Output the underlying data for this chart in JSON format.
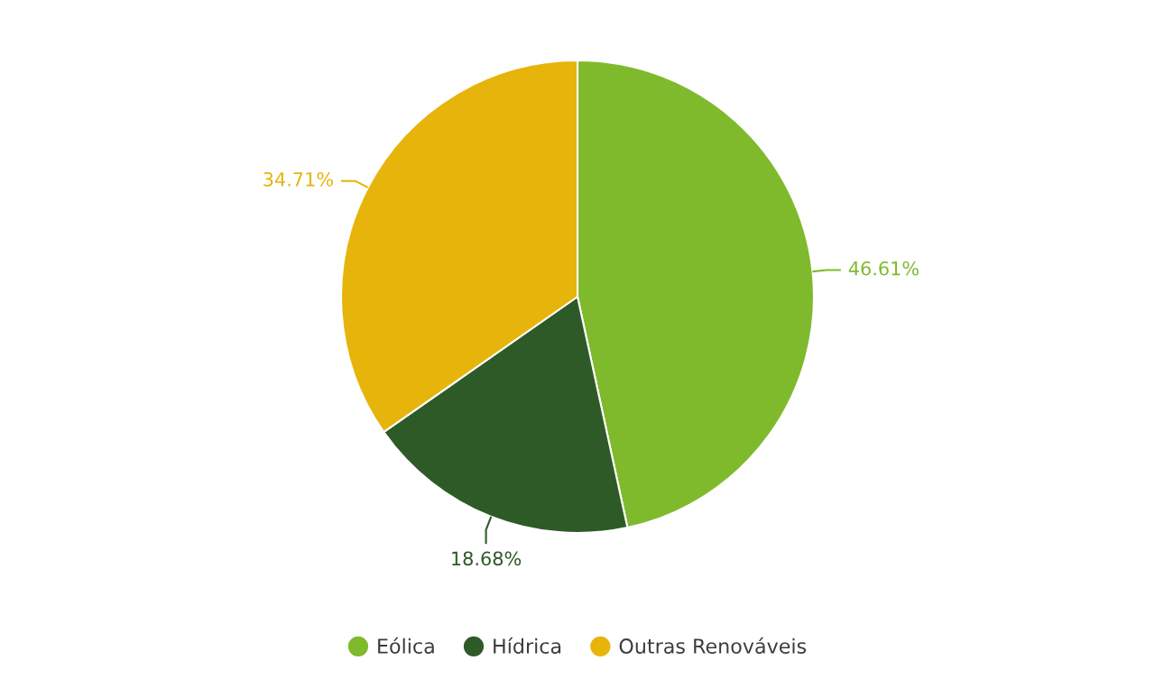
{
  "chart_data": {
    "type": "pie",
    "categories": [
      "Eólica",
      "Hídrica",
      "Outras Renováveis"
    ],
    "values": [
      46.61,
      18.68,
      34.71
    ],
    "colors": [
      "#7fba2c",
      "#2e5a27",
      "#e6b40b"
    ],
    "value_labels": [
      "46.61%",
      "18.68%",
      "34.71%"
    ],
    "legend": "bottom"
  }
}
